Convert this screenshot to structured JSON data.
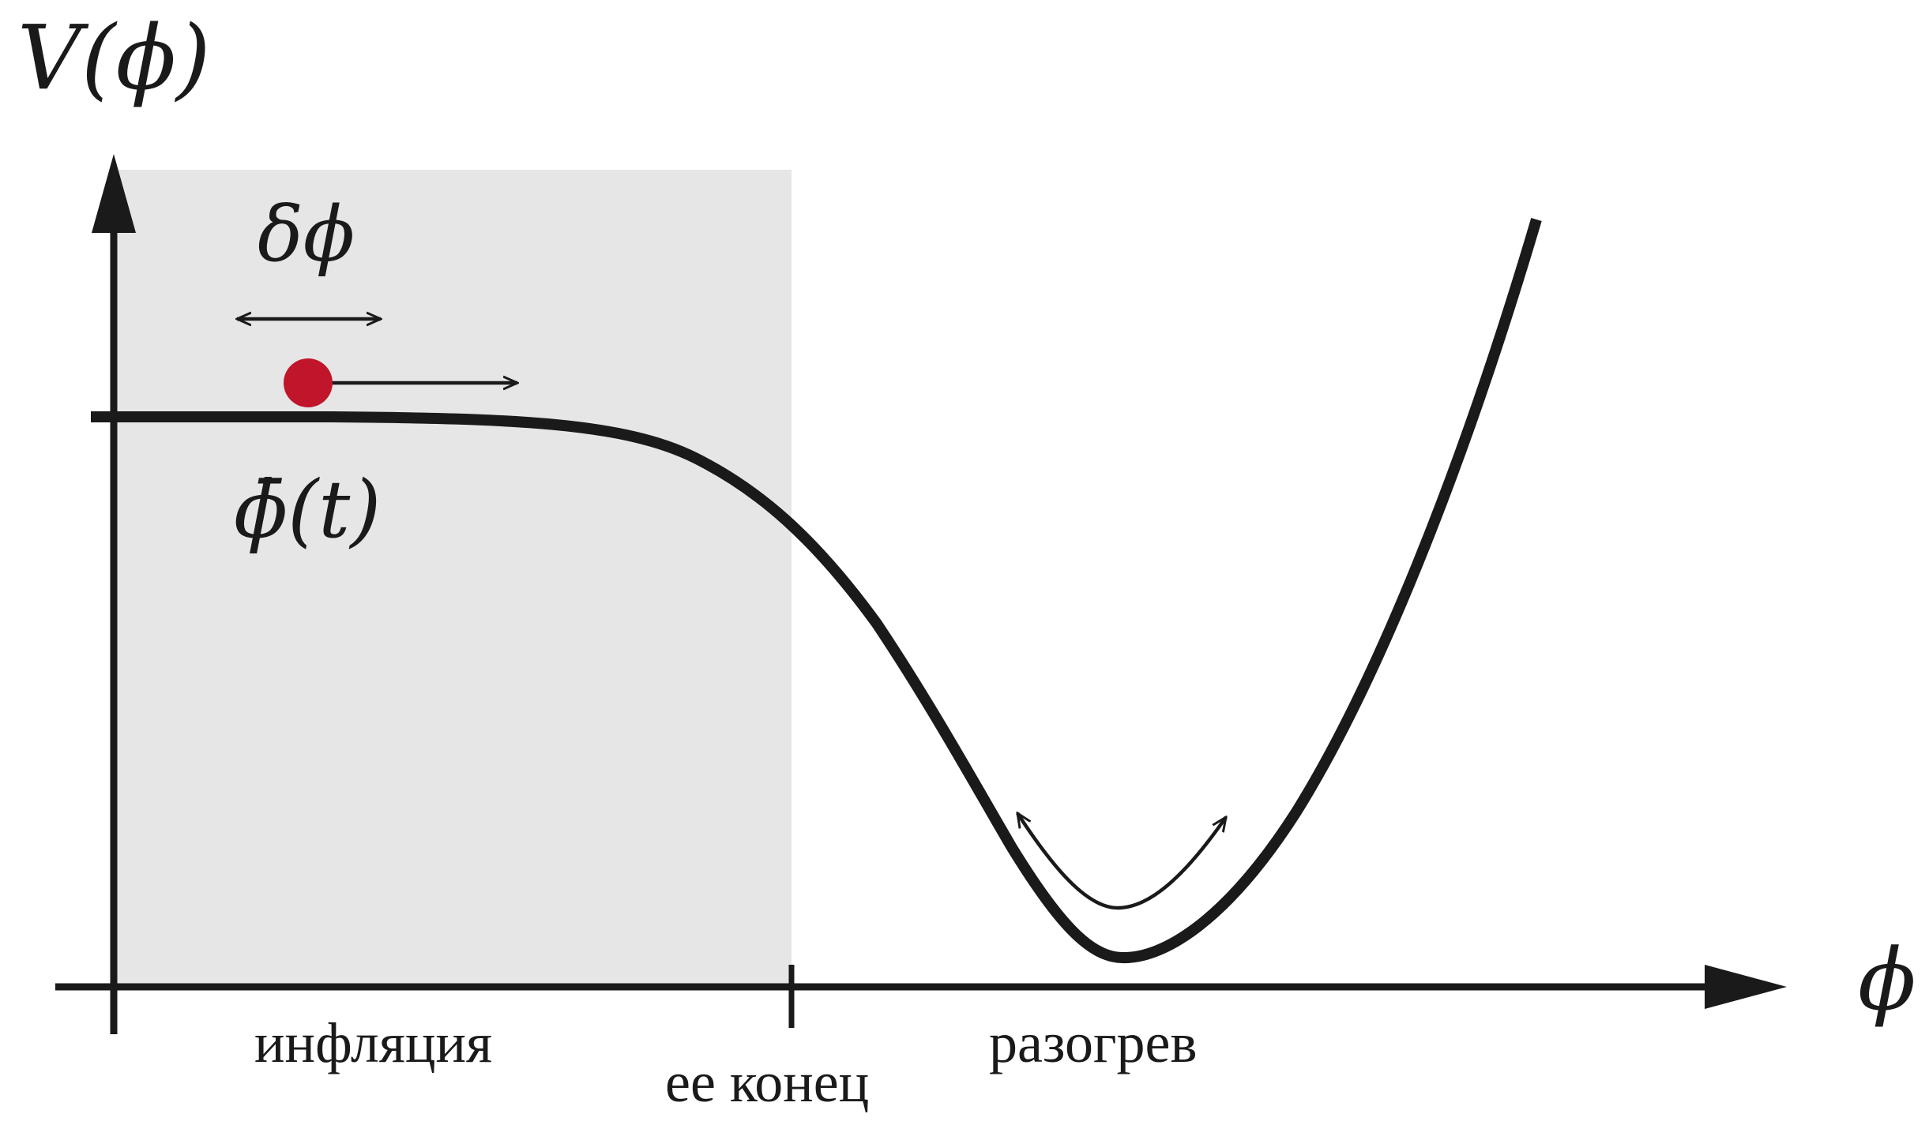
{
  "axes": {
    "y_label": "V(ϕ)",
    "x_label": "ϕ"
  },
  "annotations": {
    "fluctuation": "δϕ",
    "background_field": "ϕ̄(t)"
  },
  "regions": {
    "inflation": "инфляция",
    "end_of_inflation": "ее конец",
    "reheating": "разогрев"
  },
  "colors": {
    "curve": "#1a1a1a",
    "inflation_region": "#e6e6e6",
    "field_ball": "#c0152a"
  }
}
